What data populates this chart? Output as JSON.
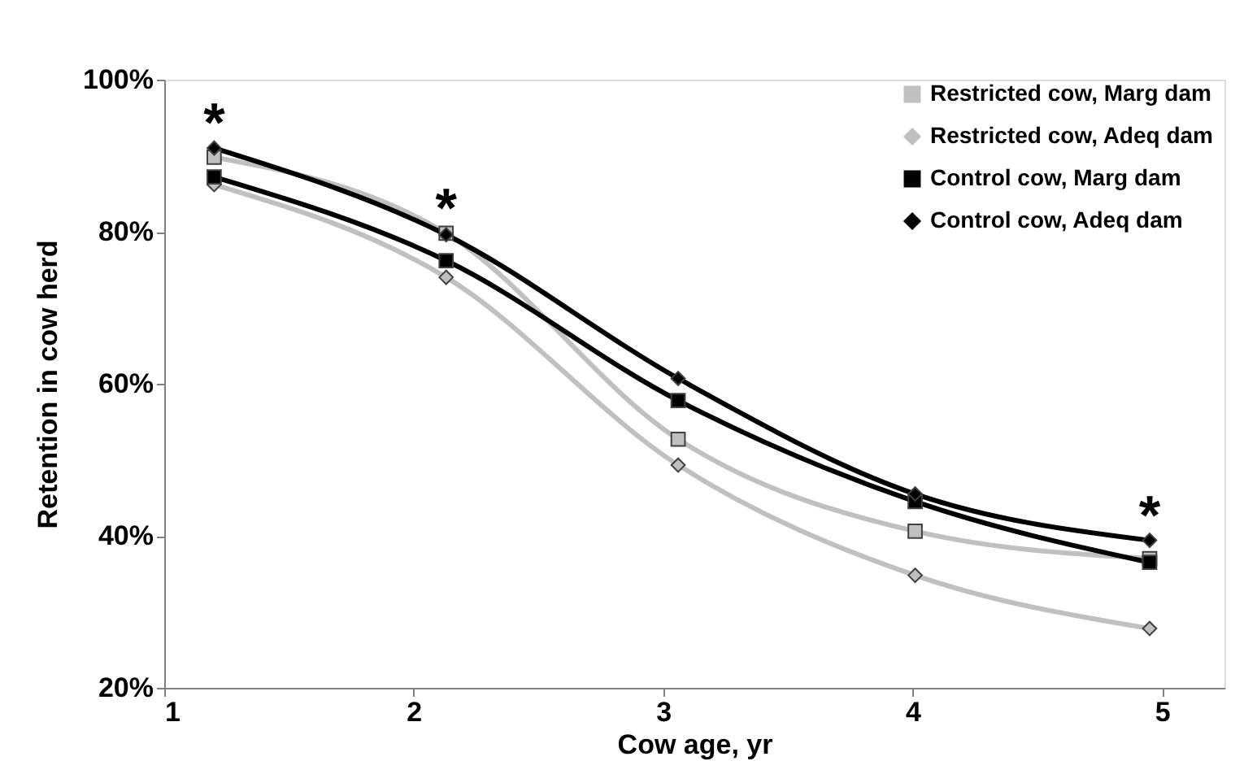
{
  "chart_data": {
    "type": "line",
    "xlabel": "Cow age, yr",
    "ylabel": "Retention in cow herd",
    "x": [
      1.2,
      2.13,
      3.06,
      4.01,
      4.95
    ],
    "series": [
      {
        "name": "Restricted cow,  Marg dam",
        "color": "#c0c0c0",
        "marker": "square",
        "values": [
          89.8,
          79.8,
          52.7,
          40.6,
          37.0
        ]
      },
      {
        "name": "Restricted cow,  Adeq dam",
        "color": "#c0c0c0",
        "marker": "diamond",
        "values": [
          86.2,
          74.0,
          49.3,
          34.8,
          27.8
        ]
      },
      {
        "name": "Control cow,  Marg dam",
        "color": "#000000",
        "marker": "square",
        "values": [
          87.2,
          76.2,
          57.8,
          44.5,
          36.5
        ]
      },
      {
        "name": "Control cow, Adeq dam",
        "color": "#000000",
        "marker": "diamond",
        "values": [
          91.0,
          79.6,
          60.7,
          45.5,
          39.4
        ]
      }
    ],
    "xlim": [
      1,
      5.25
    ],
    "xticks": [
      1,
      2,
      3,
      4,
      5
    ],
    "ylim": [
      20,
      100
    ],
    "yticks": [
      {
        "value": 20,
        "label": "20%"
      },
      {
        "value": 40,
        "label": "40%"
      },
      {
        "value": 60,
        "label": "60%"
      },
      {
        "value": 80,
        "label": "80%"
      },
      {
        "value": 100,
        "label": "100%"
      }
    ],
    "annotations": [
      {
        "text": "*",
        "x": 1.2,
        "y": 91.0
      },
      {
        "text": "*",
        "x": 2.13,
        "y": 79.8
      },
      {
        "text": "*",
        "x": 4.95,
        "y": 39.4
      }
    ],
    "grid": false,
    "legend": "top right",
    "line_style": "solid"
  }
}
